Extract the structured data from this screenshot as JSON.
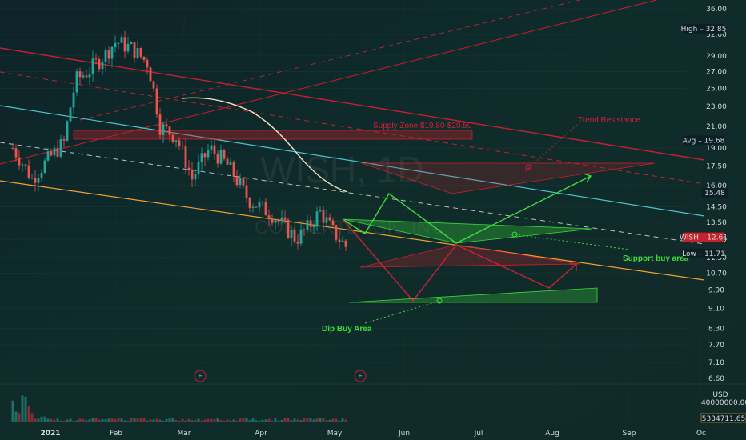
{
  "chart_data": {
    "type": "candlestick",
    "symbol": "WISH",
    "interval": "1D",
    "company": "CONTEXTLOGIC INC",
    "y_axis": {
      "scale": "log",
      "ticks": [
        6.6,
        7.1,
        7.7,
        8.3,
        9.1,
        9.9,
        10.7,
        11.5,
        12.5,
        13.5,
        14.5,
        16.0,
        17.5,
        19.0,
        21.0,
        23.0,
        25.0,
        27.0,
        29.0,
        32.0,
        36.0
      ],
      "tick_labels": [
        "6.60",
        "7.10",
        "7.70",
        "8.30",
        "9.10",
        "9.90",
        "10.70",
        "11.50",
        "12.50",
        "13.50",
        "14.50",
        "16.00",
        "17.50",
        "19.00",
        "21.00",
        "23.00",
        "25.00",
        "27.00",
        "29.00",
        "32.00",
        "36.00"
      ]
    },
    "x_axis": {
      "labels": [
        "2021",
        "Feb",
        "Mar",
        "Apr",
        "May",
        "Jun",
        "Jul",
        "Aug",
        "Sep",
        "Oc"
      ]
    },
    "price_tags": [
      {
        "label": "High",
        "value": "32.85",
        "color": "#0d1f26",
        "text": "#e8ecec"
      },
      {
        "label": "Avg",
        "value": "19.68",
        "color": "#0d1f26",
        "text": "#e8ecec"
      },
      {
        "label": "",
        "value": "15.48",
        "color": "#0d1f26",
        "text": "#e8ecec"
      },
      {
        "label": "WISH",
        "value": "12.61",
        "color": "#c8202f",
        "text": "#ffffff"
      },
      {
        "label": "Low",
        "value": "11.71",
        "color": "#0d1f26",
        "text": "#e8ecec"
      }
    ],
    "volume": {
      "unit_label": "USD",
      "scale_label": "40000000.00",
      "last_value": "5334711.65"
    },
    "annotations": {
      "supply_zone": "Supply Zone $19.80-$20.50",
      "trend_resistance": "Trend Resistance",
      "support_buy": "Support buy area",
      "dip_buy": "Dip Buy Area",
      "earnings_marker": "E"
    },
    "colors": {
      "background": "#0f2a2a",
      "up": "#26a69a",
      "down": "#ef5350",
      "resistance": "#c8202f",
      "trend_line_cyan": "#4fc3d0",
      "support_orange": "#f0a030",
      "green_path": "#3ddc3d",
      "red_path": "#d0203a",
      "ma_line": "#f2e6c8"
    }
  }
}
